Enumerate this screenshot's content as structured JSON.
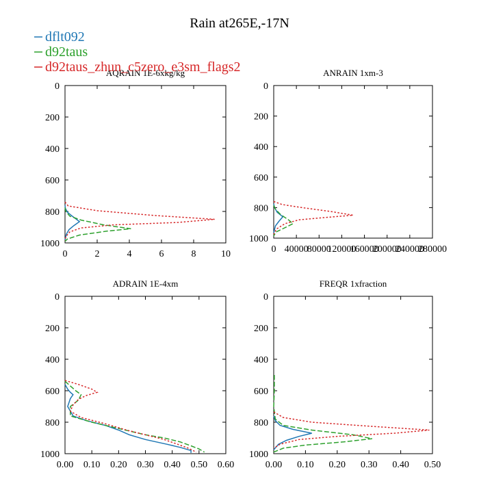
{
  "title": "Rain at265E,-17N",
  "legend": [
    {
      "name": "dflt092",
      "color": "#1f77b4",
      "dash": "solid"
    },
    {
      "name": "d92taus",
      "color": "#2ca02c",
      "dash": "dashed"
    },
    {
      "name": "d92taus_zhun_c5zero_e3sm_flags2",
      "color": "#d62728",
      "dash": "dotted"
    }
  ],
  "chart_data": [
    {
      "type": "line",
      "title": "AQRAIN  1E-6xkg/kg",
      "xlabel": "",
      "ylabel": "",
      "xlim": [
        0,
        10
      ],
      "ylim": [
        1000,
        0
      ],
      "x_ticks": [
        "0",
        "2",
        "4",
        "6",
        "8",
        "10"
      ],
      "y_ticks": [
        "0",
        "200",
        "400",
        "600",
        "800",
        "1000"
      ],
      "series": [
        {
          "name": "dflt092",
          "points": [
            [
              0,
              760
            ],
            [
              0.02,
              780
            ],
            [
              0.15,
              805
            ],
            [
              0.45,
              830
            ],
            [
              0.9,
              865
            ],
            [
              0.55,
              890
            ],
            [
              0.25,
              915
            ],
            [
              0.08,
              945
            ],
            [
              0,
              980
            ]
          ]
        },
        {
          "name": "d92taus",
          "points": [
            [
              0,
              775
            ],
            [
              0.05,
              800
            ],
            [
              0.3,
              830
            ],
            [
              1.0,
              855
            ],
            [
              2.4,
              885
            ],
            [
              4.1,
              910
            ],
            [
              2.6,
              925
            ],
            [
              0.9,
              950
            ],
            [
              0.15,
              975
            ],
            [
              0,
              990
            ]
          ]
        },
        {
          "name": "d92taus_zhun_c5zero_e3sm_flags2",
          "points": [
            [
              0,
              740
            ],
            [
              0.2,
              765
            ],
            [
              2.0,
              795
            ],
            [
              5.5,
              825
            ],
            [
              9.3,
              850
            ],
            [
              7.0,
              870
            ],
            [
              3.0,
              885
            ],
            [
              1.0,
              905
            ],
            [
              0.3,
              930
            ],
            [
              0.05,
              960
            ],
            [
              0,
              985
            ]
          ]
        }
      ]
    },
    {
      "type": "line",
      "title": "ANRAIN  1xm-3",
      "xlabel": "",
      "ylabel": "",
      "xlim": [
        0,
        280000
      ],
      "ylim": [
        1000,
        0
      ],
      "x_ticks": [
        "0",
        "40000",
        "80000",
        "120000",
        "160000",
        "200000",
        "240000",
        "280000"
      ],
      "y_ticks": [
        "0",
        "200",
        "400",
        "600",
        "800",
        "1000"
      ],
      "series": [
        {
          "name": "dflt092",
          "points": [
            [
              0,
              775
            ],
            [
              1500,
              800
            ],
            [
              6000,
              830
            ],
            [
              16000,
              860
            ],
            [
              9000,
              890
            ],
            [
              3000,
              920
            ],
            [
              0,
              965
            ]
          ]
        },
        {
          "name": "d92taus",
          "points": [
            [
              0,
              785
            ],
            [
              3000,
              810
            ],
            [
              12000,
              845
            ],
            [
              26000,
              880
            ],
            [
              34000,
              905
            ],
            [
              18000,
              935
            ],
            [
              4000,
              960
            ],
            [
              0,
              985
            ]
          ]
        },
        {
          "name": "d92taus_zhun_c5zero_e3sm_flags2",
          "points": [
            [
              0,
              760
            ],
            [
              15000,
              780
            ],
            [
              50000,
              800
            ],
            [
              100000,
              825
            ],
            [
              140000,
              850
            ],
            [
              90000,
              865
            ],
            [
              45000,
              880
            ],
            [
              20000,
              905
            ],
            [
              5000,
              940
            ],
            [
              0,
              975
            ]
          ]
        }
      ]
    },
    {
      "type": "line",
      "title": "ADRAIN  1E-4xm",
      "xlabel": "",
      "ylabel": "",
      "xlim": [
        0,
        0.6
      ],
      "ylim": [
        1000,
        0
      ],
      "x_ticks": [
        "0.00",
        "0.10",
        "0.20",
        "0.30",
        "0.40",
        "0.50",
        "0.60"
      ],
      "y_ticks": [
        "0",
        "200",
        "400",
        "600",
        "800",
        "1000"
      ],
      "series": [
        {
          "name": "dflt092",
          "points": [
            [
              0,
              560
            ],
            [
              0.01,
              590
            ],
            [
              0.02,
              610
            ],
            [
              0.03,
              625
            ],
            [
              0.02,
              650
            ],
            [
              0.01,
              700
            ],
            [
              0.03,
              760
            ],
            [
              0.08,
              790
            ],
            [
              0.15,
              820
            ],
            [
              0.2,
              850
            ],
            [
              0.24,
              880
            ],
            [
              0.3,
              910
            ],
            [
              0.38,
              940
            ],
            [
              0.43,
              960
            ],
            [
              0.47,
              980
            ],
            [
              0.47,
              995
            ]
          ]
        },
        {
          "name": "d92taus",
          "points": [
            [
              0,
              540
            ],
            [
              0.02,
              570
            ],
            [
              0.04,
              600
            ],
            [
              0.06,
              625
            ],
            [
              0.05,
              660
            ],
            [
              0.02,
              700
            ],
            [
              0.02,
              760
            ],
            [
              0.1,
              800
            ],
            [
              0.2,
              840
            ],
            [
              0.3,
              880
            ],
            [
              0.37,
              900
            ],
            [
              0.43,
              925
            ],
            [
              0.47,
              950
            ],
            [
              0.5,
              970
            ],
            [
              0.52,
              990
            ]
          ]
        },
        {
          "name": "d92taus_zhun_c5zero_e3sm_flags2",
          "points": [
            [
              0,
              535
            ],
            [
              0.05,
              560
            ],
            [
              0.1,
              590
            ],
            [
              0.12,
              610
            ],
            [
              0.08,
              630
            ],
            [
              0.05,
              655
            ],
            [
              0.03,
              690
            ],
            [
              0.02,
              730
            ],
            [
              0.06,
              770
            ],
            [
              0.15,
              810
            ],
            [
              0.23,
              850
            ],
            [
              0.3,
              880
            ],
            [
              0.37,
              910
            ],
            [
              0.42,
              940
            ],
            [
              0.46,
              965
            ],
            [
              0.49,
              990
            ]
          ]
        }
      ]
    },
    {
      "type": "line",
      "title": "FREQR  1xfraction",
      "xlabel": "",
      "ylabel": "",
      "xlim": [
        0,
        0.5
      ],
      "ylim": [
        1000,
        0
      ],
      "x_ticks": [
        "0.00",
        "0.10",
        "0.20",
        "0.30",
        "0.40",
        "0.50"
      ],
      "y_ticks": [
        "0",
        "200",
        "400",
        "600",
        "800",
        "1000"
      ],
      "series": [
        {
          "name": "dflt092",
          "points": [
            [
              0,
              760
            ],
            [
              0.005,
              790
            ],
            [
              0.02,
              820
            ],
            [
              0.06,
              845
            ],
            [
              0.12,
              870
            ],
            [
              0.08,
              890
            ],
            [
              0.04,
              915
            ],
            [
              0.015,
              940
            ],
            [
              0,
              975
            ]
          ]
        },
        {
          "name": "d92taus",
          "points": [
            [
              0.002,
              500
            ],
            [
              0.002,
              600
            ],
            [
              0,
              700
            ],
            [
              0.005,
              780
            ],
            [
              0.03,
              820
            ],
            [
              0.12,
              850
            ],
            [
              0.25,
              880
            ],
            [
              0.31,
              905
            ],
            [
              0.22,
              925
            ],
            [
              0.1,
              945
            ],
            [
              0.03,
              965
            ],
            [
              0,
              990
            ]
          ]
        },
        {
          "name": "d92taus_zhun_c5zero_e3sm_flags2",
          "points": [
            [
              0,
              735
            ],
            [
              0.03,
              770
            ],
            [
              0.12,
              800
            ],
            [
              0.3,
              825
            ],
            [
              0.49,
              850
            ],
            [
              0.38,
              870
            ],
            [
              0.2,
              890
            ],
            [
              0.08,
              910
            ],
            [
              0.02,
              940
            ],
            [
              0,
              965
            ]
          ]
        }
      ]
    }
  ]
}
